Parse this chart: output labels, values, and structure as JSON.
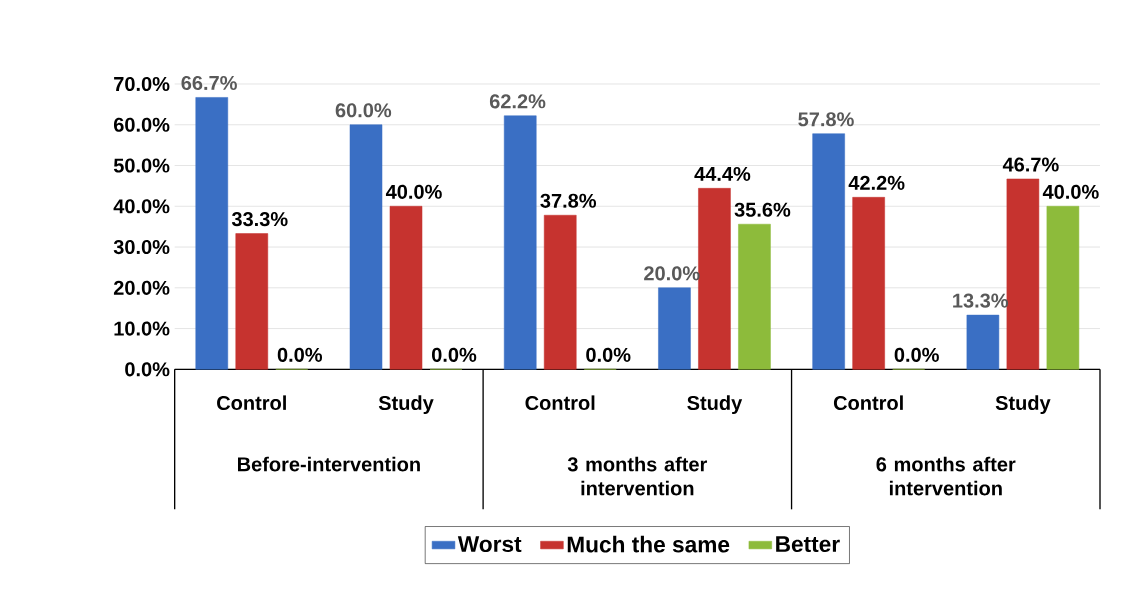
{
  "chart_data": {
    "type": "bar",
    "categories": [
      "Control",
      "Study",
      "Control",
      "Study",
      "Control",
      "Study"
    ],
    "series": [
      {
        "name": "Worst",
        "color": "#3a6fc4",
        "values": [
          66.7,
          60.0,
          62.2,
          20.0,
          57.8,
          13.3
        ],
        "value_labels": [
          "66.7%",
          "60.0%",
          "62.2%",
          "20.0%",
          "57.8%",
          "13.3%"
        ]
      },
      {
        "name": "Much the same",
        "color": "#c6332f",
        "values": [
          33.3,
          40.0,
          37.8,
          44.4,
          42.2,
          46.7
        ],
        "value_labels": [
          "33.3%",
          "40.0%",
          "37.8%",
          "44.4%",
          "42.2%",
          "46.7%"
        ]
      },
      {
        "name": "Better",
        "color": "#8dbb3b",
        "values": [
          0.0,
          0.0,
          0.0,
          35.6,
          0.0,
          40.0
        ],
        "value_labels": [
          "0.0%",
          "0.0%",
          "0.0%",
          "35.6%",
          "0.0%",
          "40.0%"
        ]
      }
    ],
    "annotations": [
      "Before-intervention",
      "3 months after intervention",
      "6 months after intervention"
    ],
    "ylim": [
      0,
      70
    ],
    "yticks": [
      {
        "value": 0,
        "label": "0.0%"
      },
      {
        "value": 10,
        "label": "10.0%"
      },
      {
        "value": 20,
        "label": "20.0%"
      },
      {
        "value": 30,
        "label": "30.0%"
      },
      {
        "value": 40,
        "label": "40.0%"
      },
      {
        "value": 50,
        "label": "50.0%"
      },
      {
        "value": 60,
        "label": "60.0%"
      },
      {
        "value": 70,
        "label": "70.0%"
      }
    ],
    "grid": "y",
    "legend": "bottom"
  }
}
